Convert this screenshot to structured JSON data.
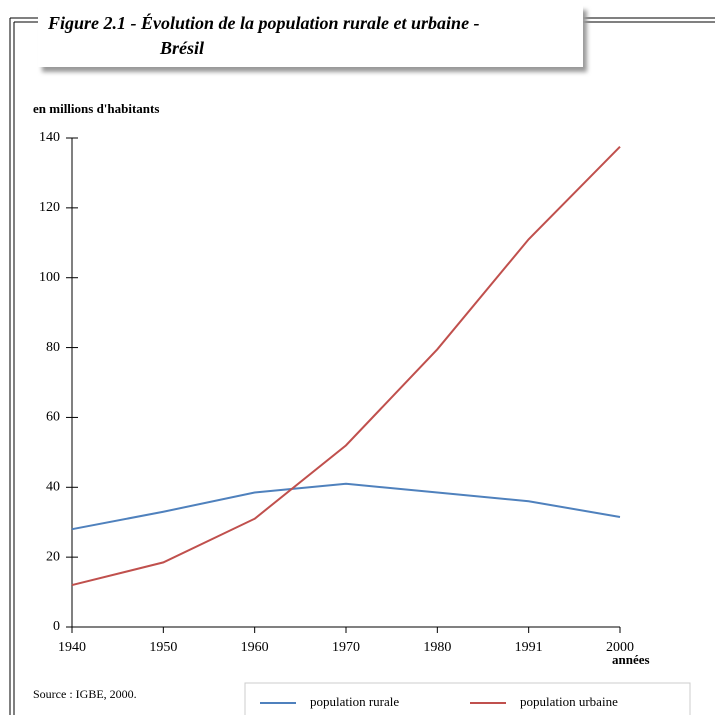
{
  "chart_data": {
    "type": "line",
    "title": [
      "Figure 2.1 - Évolution de la population rurale et urbaine -",
      "Brésil"
    ],
    "y_label": "en millions d'habitants",
    "x_label": "années",
    "source": "Source : IGBE, 2000.",
    "categories": [
      "1940",
      "1950",
      "1960",
      "1970",
      "1980",
      "1991",
      "2000"
    ],
    "series": [
      {
        "name": "population rurale",
        "color": "#4f81bd",
        "values": [
          28,
          33,
          38.5,
          41,
          38.5,
          36,
          31.5
        ]
      },
      {
        "name": "population urbaine",
        "color": "#c0504d",
        "values": [
          12,
          18.5,
          31,
          52,
          79.5,
          111,
          137.5
        ]
      }
    ],
    "ylim": [
      0,
      140
    ],
    "yticks": [
      0,
      20,
      40,
      60,
      80,
      100,
      120,
      140
    ],
    "grid": false,
    "legend": "bottom"
  }
}
